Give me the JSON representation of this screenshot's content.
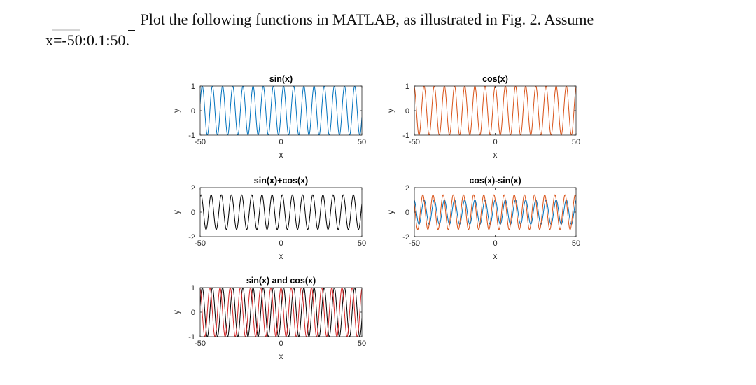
{
  "question": {
    "line1": "Plot the following functions in MATLAB, as illustrated in Fig. 2. Assume",
    "line2": "x=-50:0.1:50."
  },
  "chart_data": [
    {
      "type": "line",
      "title": "sin(x)",
      "xlabel": "x",
      "ylabel": "y",
      "xlim": [
        -50,
        50
      ],
      "ylim": [
        -1,
        1
      ],
      "xticks": [
        -50,
        0,
        50
      ],
      "yticks": [
        -1,
        0,
        1
      ],
      "series": [
        {
          "expr": "sin",
          "color": "#0072BD",
          "x_range": [
            -50,
            50
          ],
          "step": 0.1
        }
      ]
    },
    {
      "type": "line",
      "title": "cos(x)",
      "xlabel": "x",
      "ylabel": "y",
      "xlim": [
        -50,
        50
      ],
      "ylim": [
        -1,
        1
      ],
      "xticks": [
        -50,
        0,
        50
      ],
      "yticks": [
        -1,
        0,
        1
      ],
      "series": [
        {
          "expr": "cos",
          "color": "#D95319",
          "x_range": [
            -50,
            50
          ],
          "step": 0.1
        }
      ]
    },
    {
      "type": "line",
      "title": "sin(x)+cos(x)",
      "xlabel": "x",
      "ylabel": "y",
      "xlim": [
        -50,
        50
      ],
      "ylim": [
        -2,
        2
      ],
      "xticks": [
        -50,
        0,
        50
      ],
      "yticks": [
        -2,
        0,
        2
      ],
      "series": [
        {
          "expr": "sin+cos",
          "color": "#000000",
          "x_range": [
            -50,
            50
          ],
          "step": 0.1
        }
      ]
    },
    {
      "type": "line",
      "title": "cos(x)-sin(x)",
      "xlabel": "x",
      "ylabel": "y",
      "xlim": [
        -50,
        50
      ],
      "ylim": [
        -2,
        2
      ],
      "xticks": [
        -50,
        0,
        50
      ],
      "yticks": [
        -2,
        0,
        2
      ],
      "series": [
        {
          "expr": "cos",
          "color": "#0072BD",
          "x_range": [
            -50,
            50
          ],
          "step": 0.1
        },
        {
          "expr": "cos-sin",
          "color": "#D95319",
          "x_range": [
            -50,
            50
          ],
          "step": 0.1
        }
      ]
    },
    {
      "type": "line",
      "title": "sin(x) and cos(x)",
      "xlabel": "x",
      "ylabel": "y",
      "xlim": [
        -50,
        50
      ],
      "ylim": [
        -1,
        1
      ],
      "xticks": [
        -50,
        0,
        50
      ],
      "yticks": [
        -1,
        0,
        1
      ],
      "series": [
        {
          "expr": "sin",
          "color": "#000000",
          "x_range": [
            -50,
            50
          ],
          "step": 0.1
        },
        {
          "expr": "cos",
          "color": "#D62728",
          "x_range": [
            -50,
            50
          ],
          "step": 0.1
        }
      ]
    }
  ]
}
